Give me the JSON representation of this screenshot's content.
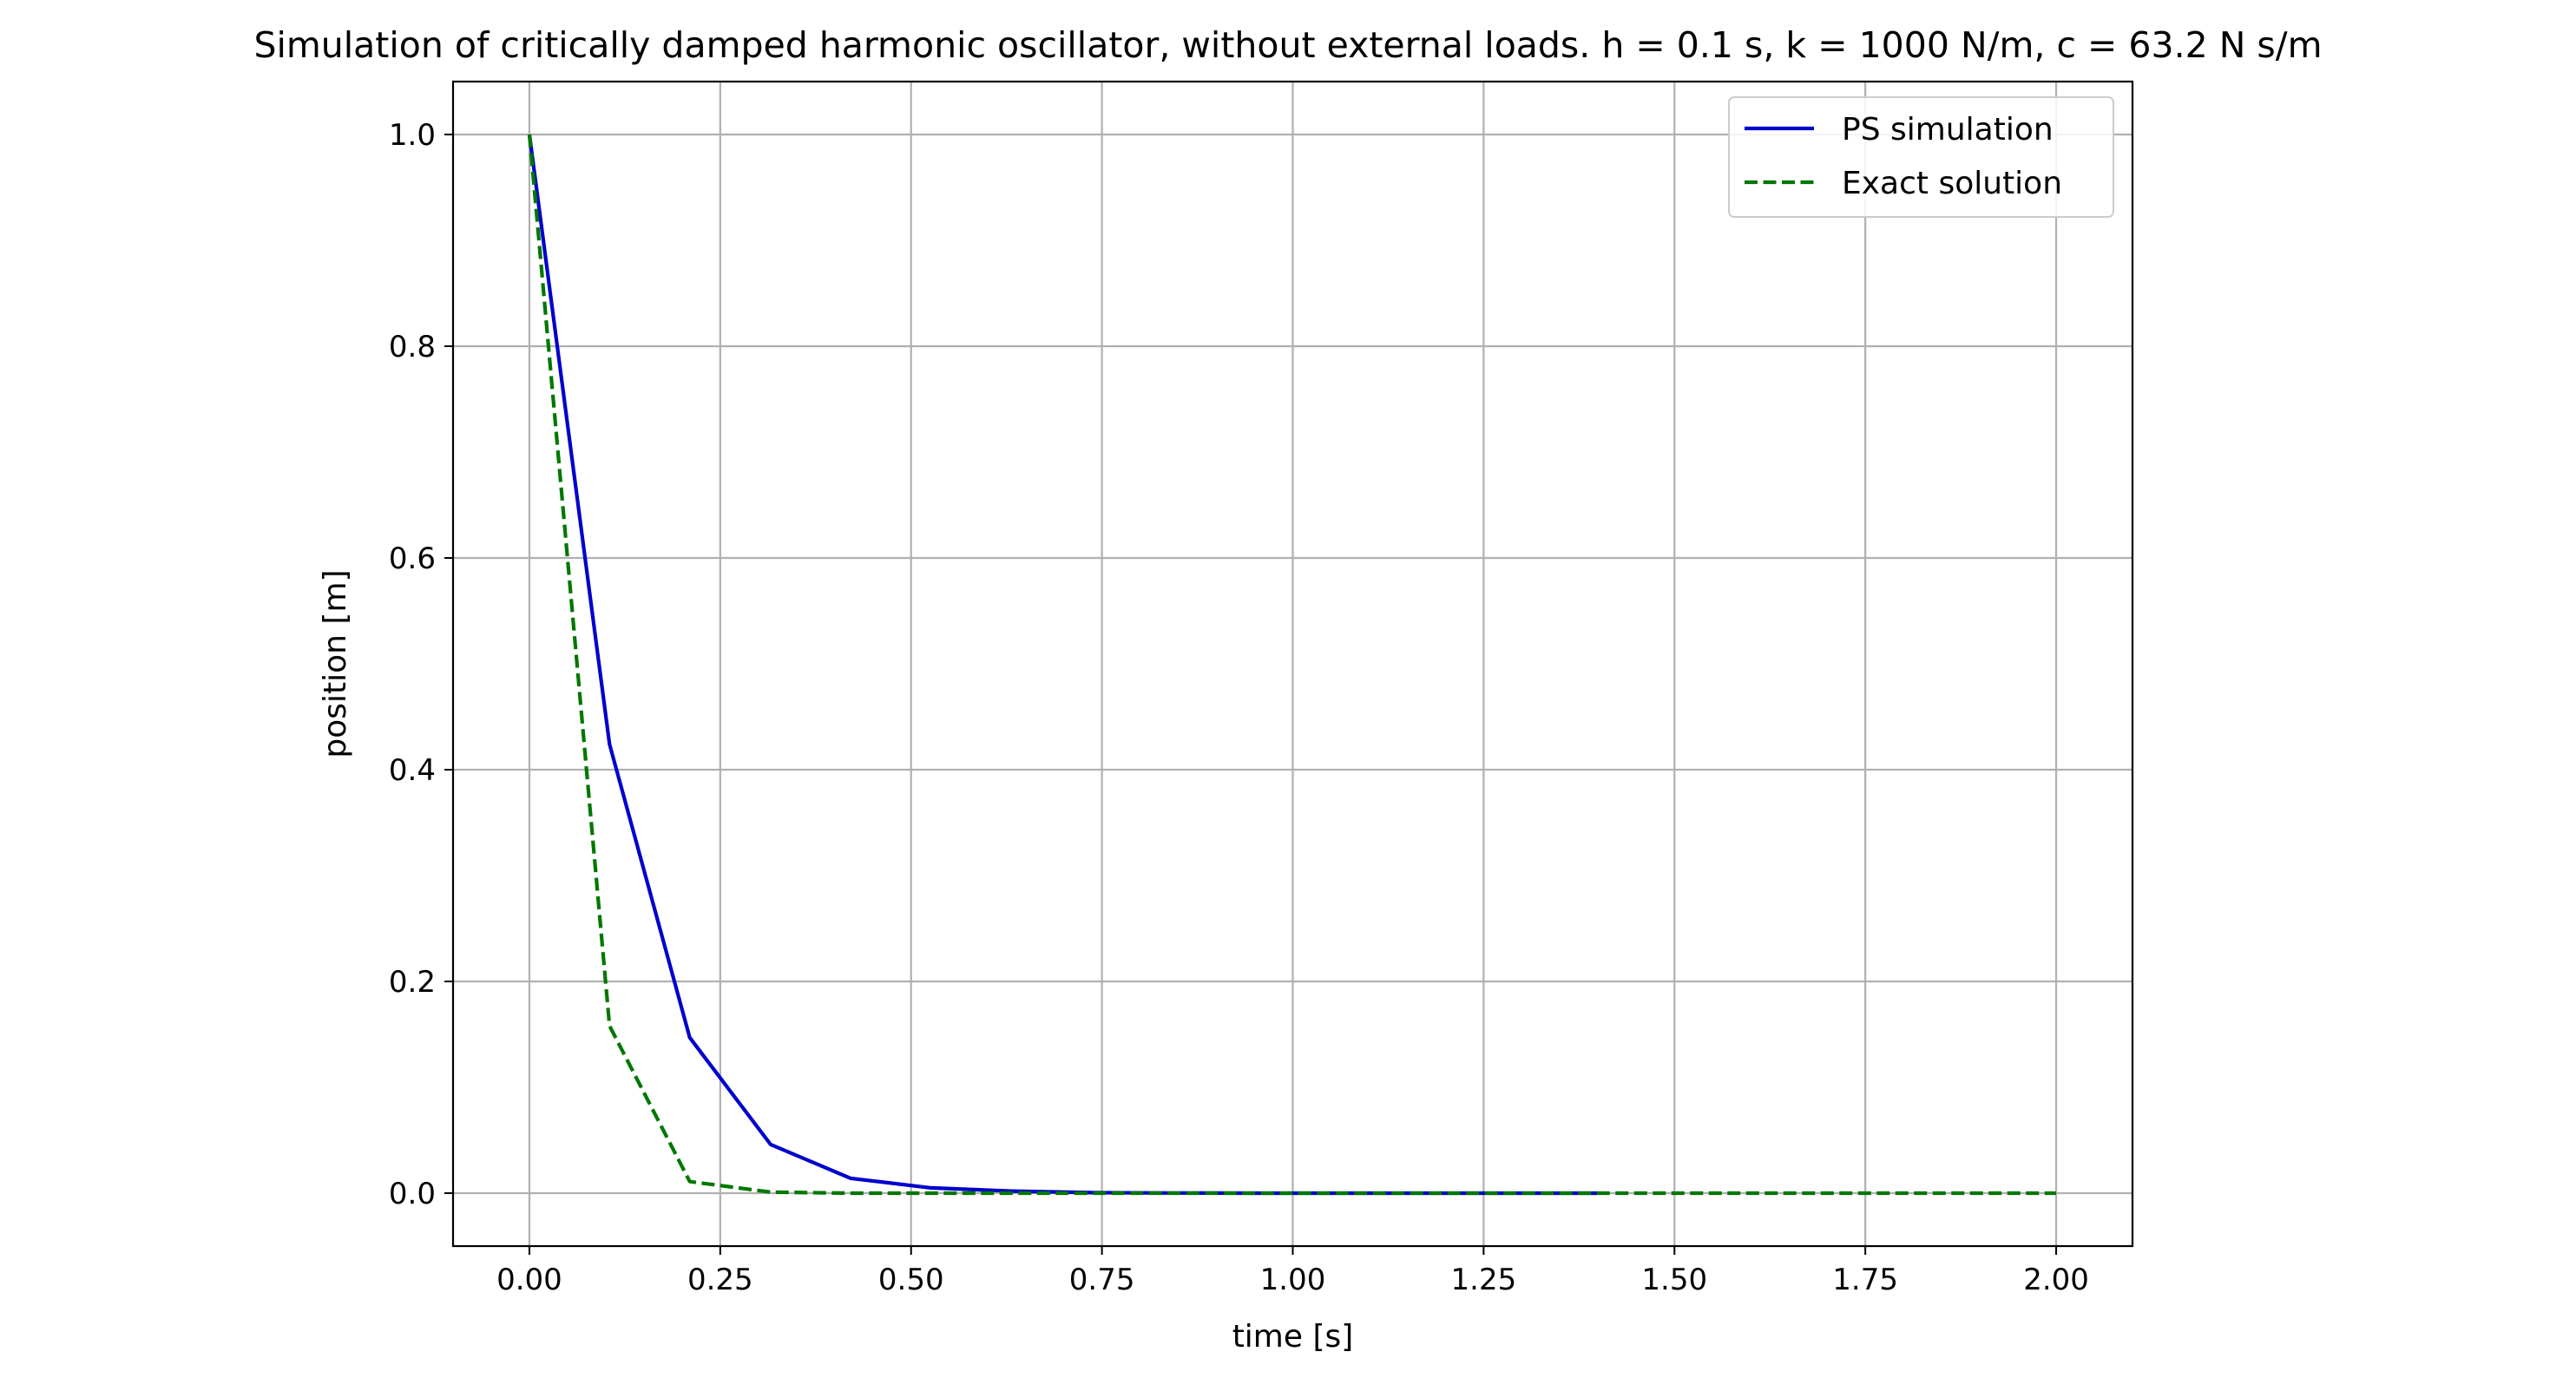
{
  "chart_data": {
    "type": "line",
    "title": "Simulation of critically damped harmonic oscillator, without external loads. h = 0.1 s, k = 1000 N/m, c = 63.2 N s/m",
    "xlabel": "time [s]",
    "ylabel": "position [m]",
    "xlim": [
      -0.1,
      2.1
    ],
    "ylim": [
      -0.05,
      1.05
    ],
    "xticks": [
      0.0,
      0.25,
      0.5,
      0.75,
      1.0,
      1.25,
      1.5,
      1.75,
      2.0
    ],
    "xtick_labels": [
      "0.00",
      "0.25",
      "0.50",
      "0.75",
      "1.00",
      "1.25",
      "1.50",
      "1.75",
      "2.00"
    ],
    "yticks": [
      0.0,
      0.2,
      0.4,
      0.6,
      0.8,
      1.0
    ],
    "ytick_labels": [
      "0.0",
      "0.2",
      "0.4",
      "0.6",
      "0.8",
      "1.0"
    ],
    "grid": true,
    "legend_position": "top-right",
    "series": [
      {
        "name": "PS simulation",
        "color": "#0000cc",
        "style": "solid",
        "x": [
          0.0,
          0.105,
          0.21,
          0.316,
          0.421,
          0.526,
          0.632,
          0.737,
          0.842,
          0.947,
          1.053,
          1.158,
          1.263,
          1.368,
          1.4
        ],
        "y": [
          1.0,
          0.424,
          0.147,
          0.046,
          0.014,
          0.005,
          0.002,
          0.0005,
          0.0002,
          0.0,
          0.0,
          0.0,
          0.0,
          0.0,
          0.0
        ]
      },
      {
        "name": "Exact solution",
        "color": "#007700",
        "style": "dashed",
        "x": [
          0.0,
          0.105,
          0.21,
          0.316,
          0.421,
          0.526,
          0.632,
          0.737,
          0.842,
          0.947,
          1.053,
          1.158,
          1.263,
          1.368,
          1.474,
          1.579,
          1.684,
          1.789,
          1.895,
          2.0
        ],
        "y": [
          1.0,
          0.158,
          0.011,
          0.001,
          0.0,
          0.0,
          0.0,
          0.0,
          0.0,
          0.0,
          0.0,
          0.0,
          0.0,
          0.0,
          0.0,
          0.0,
          0.0,
          0.0,
          0.0,
          0.0
        ]
      }
    ]
  }
}
